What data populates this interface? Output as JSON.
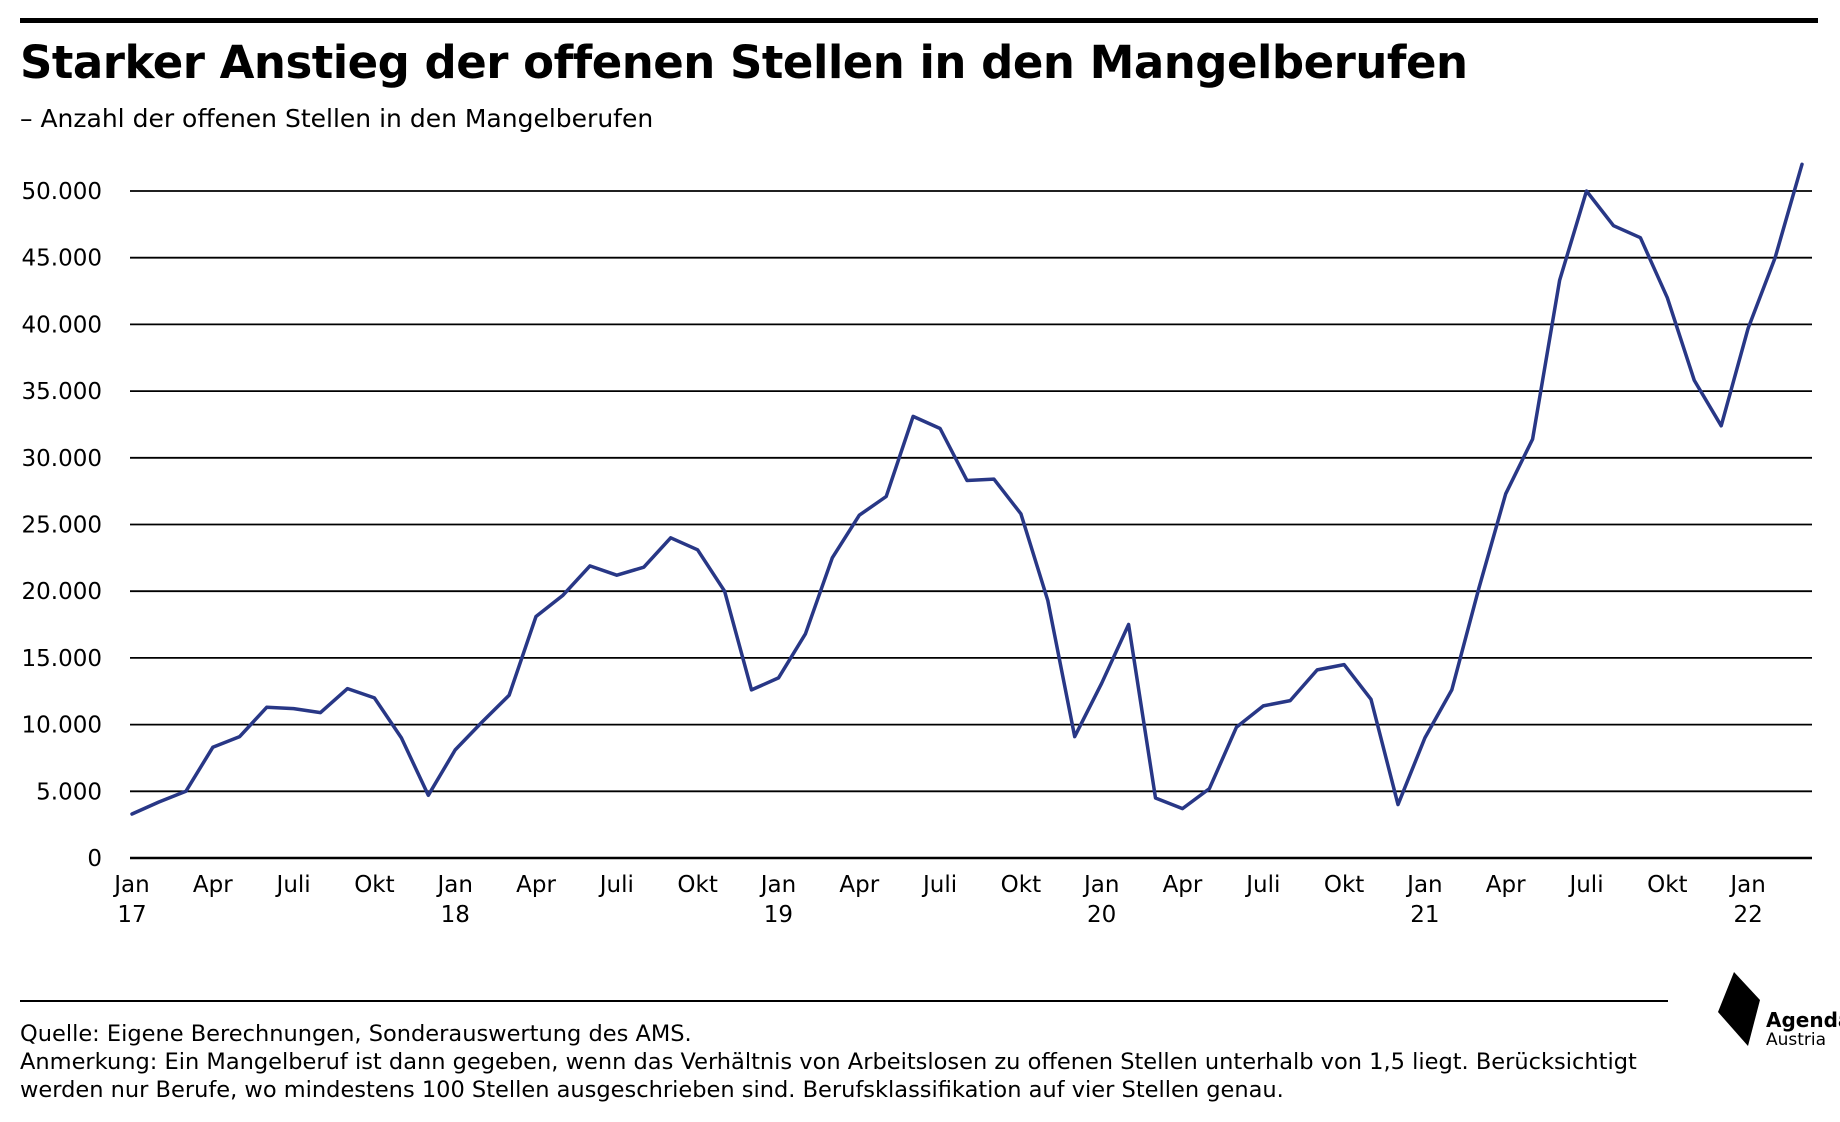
{
  "header": {
    "title": "Starker Anstieg der offenen Stellen in den Mangelberufen",
    "subtitle": "– Anzahl der offenen Stellen in den Mangelberufen"
  },
  "footer": {
    "source": "Quelle: Eigene Berechnungen, Sonderauswertung des AMS.",
    "note_line1": "Anmerkung: Ein Mangelberuf ist dann gegeben, wenn das Verhältnis von Arbeitslosen zu offenen Stellen unterhalb von 1,5 liegt. Berücksichtigt",
    "note_line2": "werden nur Berufe, wo mindestens 100 Stellen ausgeschrieben sind. Berufsklassifikation auf vier Stellen genau."
  },
  "logo": {
    "name": "Agenda",
    "sub": "Austria"
  },
  "colors": {
    "line": "#283786",
    "grid": "#000000",
    "text": "#000000"
  },
  "chart_data": {
    "type": "line",
    "title": "Starker Anstieg der offenen Stellen in den Mangelberufen",
    "subtitle": "– Anzahl der offenen Stellen in den Mangelberufen",
    "ylim": [
      0,
      50000
    ],
    "y_ticks": [
      0,
      5000,
      10000,
      15000,
      20000,
      25000,
      30000,
      35000,
      40000,
      45000,
      50000
    ],
    "y_tick_labels": [
      "0",
      "5.000",
      "10.000",
      "15.000",
      "20.000",
      "25.000",
      "30.000",
      "35.000",
      "40.000",
      "45.000",
      "50.000"
    ],
    "grid": true,
    "x_start": "2017-01",
    "x_end": "2022-03",
    "x_ticks": [
      {
        "x": "2017-01",
        "label": "Jan",
        "year": "17"
      },
      {
        "x": "2017-04",
        "label": "Apr",
        "year": ""
      },
      {
        "x": "2017-07",
        "label": "Juli",
        "year": ""
      },
      {
        "x": "2017-10",
        "label": "Okt",
        "year": ""
      },
      {
        "x": "2018-01",
        "label": "Jan",
        "year": "18"
      },
      {
        "x": "2018-04",
        "label": "Apr",
        "year": ""
      },
      {
        "x": "2018-07",
        "label": "Juli",
        "year": ""
      },
      {
        "x": "2018-10",
        "label": "Okt",
        "year": ""
      },
      {
        "x": "2019-01",
        "label": "Jan",
        "year": "19"
      },
      {
        "x": "2019-04",
        "label": "Apr",
        "year": ""
      },
      {
        "x": "2019-07",
        "label": "Juli",
        "year": ""
      },
      {
        "x": "2019-10",
        "label": "Okt",
        "year": ""
      },
      {
        "x": "2020-01",
        "label": "Jan",
        "year": "20"
      },
      {
        "x": "2020-04",
        "label": "Apr",
        "year": ""
      },
      {
        "x": "2020-07",
        "label": "Juli",
        "year": ""
      },
      {
        "x": "2020-10",
        "label": "Okt",
        "year": ""
      },
      {
        "x": "2021-01",
        "label": "Jan",
        "year": "21"
      },
      {
        "x": "2021-04",
        "label": "Apr",
        "year": ""
      },
      {
        "x": "2021-07",
        "label": "Juli",
        "year": ""
      },
      {
        "x": "2021-10",
        "label": "Okt",
        "year": ""
      },
      {
        "x": "2022-01",
        "label": "Jan",
        "year": "22"
      }
    ],
    "series": [
      {
        "name": "",
        "x": [
          "2017-01",
          "2017-02",
          "2017-03",
          "2017-04",
          "2017-05",
          "2017-06",
          "2017-07",
          "2017-08",
          "2017-09",
          "2017-10",
          "2017-11",
          "2017-12",
          "2018-01",
          "2018-02",
          "2018-03",
          "2018-04",
          "2018-05",
          "2018-06",
          "2018-07",
          "2018-08",
          "2018-09",
          "2018-10",
          "2018-11",
          "2018-12",
          "2019-01",
          "2019-02",
          "2019-03",
          "2019-04",
          "2019-05",
          "2019-06",
          "2019-07",
          "2019-08",
          "2019-09",
          "2019-10",
          "2019-11",
          "2019-12",
          "2020-01",
          "2020-02",
          "2020-03",
          "2020-04",
          "2020-05",
          "2020-06",
          "2020-07",
          "2020-08",
          "2020-09",
          "2020-10",
          "2020-11",
          "2020-12",
          "2021-01",
          "2021-02",
          "2021-03",
          "2021-04",
          "2021-05",
          "2021-06",
          "2021-07",
          "2021-08",
          "2021-09",
          "2021-10",
          "2021-11",
          "2021-12",
          "2022-01",
          "2022-02",
          "2022-03"
        ],
        "values": [
          3300,
          4200,
          5000,
          8300,
          9100,
          11300,
          11200,
          10900,
          12700,
          12000,
          9000,
          4700,
          8100,
          10200,
          12200,
          18100,
          19700,
          21900,
          21200,
          21800,
          24000,
          23100,
          20000,
          12600,
          13500,
          16800,
          22500,
          25700,
          27100,
          33100,
          32200,
          28300,
          28400,
          25800,
          19300,
          9100,
          13100,
          17500,
          4500,
          3700,
          5200,
          9800,
          11400,
          11800,
          14100,
          14500,
          11900,
          4000,
          9000,
          12600,
          20200,
          27300,
          31400,
          43300,
          50000,
          47400,
          46500,
          42000,
          35800,
          32400,
          39700,
          45000,
          52000
        ]
      }
    ]
  }
}
